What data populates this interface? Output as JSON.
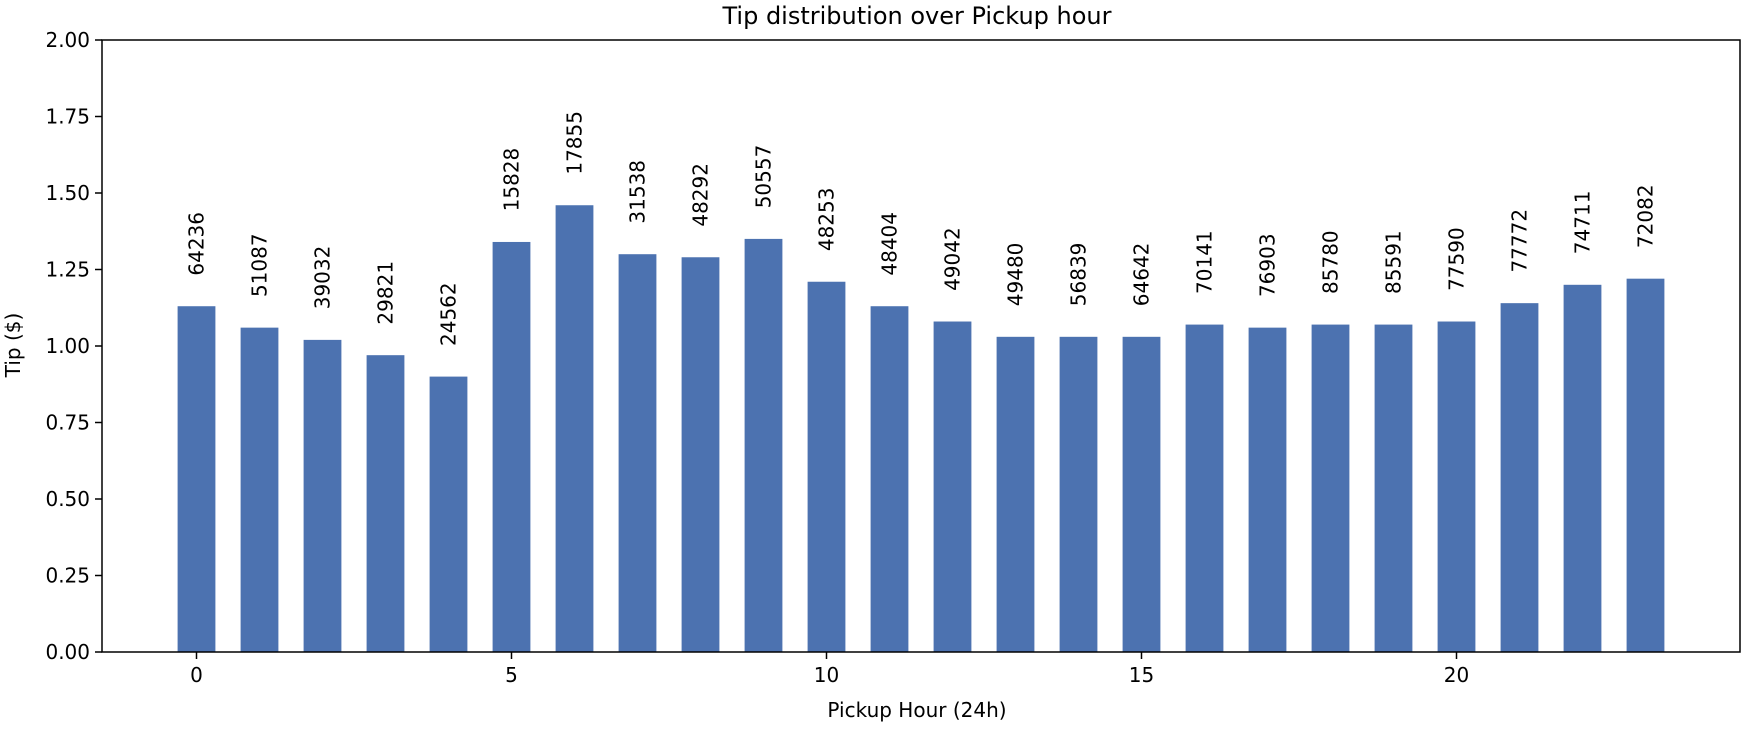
{
  "chart_data": {
    "type": "bar",
    "title": "Tip distribution over Pickup hour",
    "xlabel": "Pickup Hour (24h)",
    "ylabel": "Tip ($)",
    "xlim": [
      -1.5,
      24.5
    ],
    "ylim": [
      0,
      2.0
    ],
    "x_ticks": [
      0,
      5,
      10,
      15,
      20
    ],
    "y_ticks": [
      "0.00",
      "0.25",
      "0.50",
      "0.75",
      "1.00",
      "1.25",
      "1.50",
      "1.75",
      "2.00"
    ],
    "grid": false,
    "bar_color": "#4c72b0",
    "categories": [
      0,
      1,
      2,
      3,
      4,
      5,
      6,
      7,
      8,
      9,
      10,
      11,
      12,
      13,
      14,
      15,
      16,
      17,
      18,
      19,
      20,
      21,
      22,
      23
    ],
    "values": [
      1.13,
      1.06,
      1.02,
      0.97,
      0.9,
      1.34,
      1.46,
      1.3,
      1.29,
      1.35,
      1.21,
      1.13,
      1.08,
      1.03,
      1.03,
      1.03,
      1.07,
      1.06,
      1.07,
      1.07,
      1.08,
      1.14,
      1.2,
      1.22
    ],
    "bar_labels": [
      "64236",
      "51087",
      "39032",
      "29821",
      "24562",
      "15828",
      "17855",
      "31538",
      "48292",
      "50557",
      "48253",
      "48404",
      "49042",
      "49480",
      "56839",
      "64642",
      "70141",
      "76903",
      "85780",
      "85591",
      "77590",
      "77772",
      "74711",
      "72082"
    ]
  }
}
